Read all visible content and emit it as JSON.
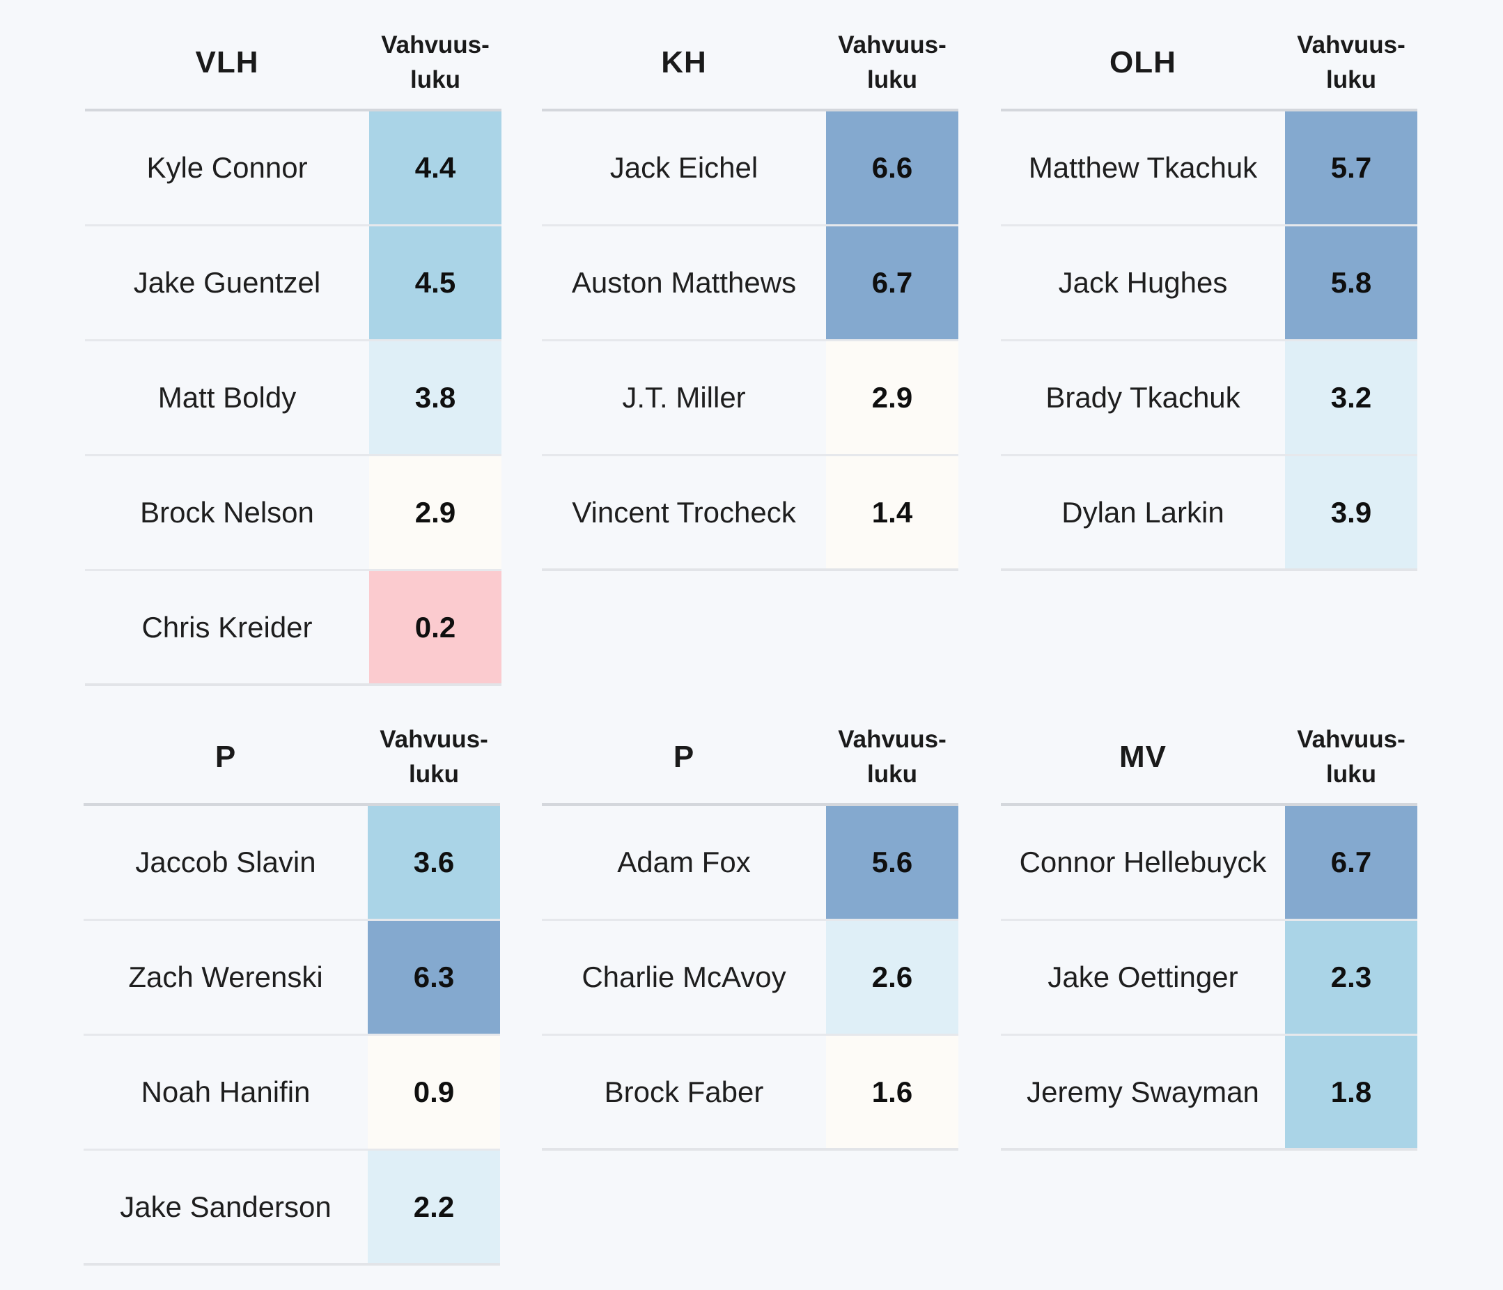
{
  "colors": {
    "tier_high": "#84a9cf",
    "tier_mid": "#aad4e7",
    "tier_low": "#dfeff7",
    "tier_neutral": "#fdfbf7",
    "tier_negative": "#fbcbcf"
  },
  "tables": [
    {
      "position": "VLH",
      "score_header": "Vahvuus-\nluku",
      "rows": [
        {
          "name": "Kyle Connor",
          "score": "4.4",
          "tier": "mid"
        },
        {
          "name": "Jake Guentzel",
          "score": "4.5",
          "tier": "mid"
        },
        {
          "name": "Matt Boldy",
          "score": "3.8",
          "tier": "low"
        },
        {
          "name": "Brock Nelson",
          "score": "2.9",
          "tier": "neutral"
        },
        {
          "name": "Chris Kreider",
          "score": "0.2",
          "tier": "negative"
        }
      ]
    },
    {
      "position": "KH",
      "score_header": "Vahvuus-\nluku",
      "rows": [
        {
          "name": "Jack Eichel",
          "score": "6.6",
          "tier": "high"
        },
        {
          "name": "Auston Matthews",
          "score": "6.7",
          "tier": "high"
        },
        {
          "name": "J.T. Miller",
          "score": "2.9",
          "tier": "neutral"
        },
        {
          "name": "Vincent Trocheck",
          "score": "1.4",
          "tier": "neutral"
        }
      ]
    },
    {
      "position": "OLH",
      "score_header": "Vahvuus-\nluku",
      "rows": [
        {
          "name": "Matthew Tkachuk",
          "score": "5.7",
          "tier": "high"
        },
        {
          "name": "Jack Hughes",
          "score": "5.8",
          "tier": "high"
        },
        {
          "name": "Brady Tkachuk",
          "score": "3.2",
          "tier": "low"
        },
        {
          "name": "Dylan Larkin",
          "score": "3.9",
          "tier": "low"
        }
      ]
    },
    {
      "position": "P",
      "score_header": "Vahvuus-\nluku",
      "rows": [
        {
          "name": "Jaccob Slavin",
          "score": "3.6",
          "tier": "mid"
        },
        {
          "name": "Zach Werenski",
          "score": "6.3",
          "tier": "high"
        },
        {
          "name": "Noah Hanifin",
          "score": "0.9",
          "tier": "neutral"
        },
        {
          "name": "Jake Sanderson",
          "score": "2.2",
          "tier": "low"
        }
      ]
    },
    {
      "position": "P",
      "score_header": "Vahvuus-\nluku",
      "rows": [
        {
          "name": "Adam Fox",
          "score": "5.6",
          "tier": "high"
        },
        {
          "name": "Charlie McAvoy",
          "score": "2.6",
          "tier": "low"
        },
        {
          "name": "Brock Faber",
          "score": "1.6",
          "tier": "neutral"
        }
      ]
    },
    {
      "position": "MV",
      "score_header": "Vahvuus-\nluku",
      "rows": [
        {
          "name": "Connor Hellebuyck",
          "score": "6.7",
          "tier": "high"
        },
        {
          "name": "Jake Oettinger",
          "score": "2.3",
          "tier": "mid"
        },
        {
          "name": "Jeremy Swayman",
          "score": "1.8",
          "tier": "mid"
        }
      ]
    }
  ],
  "chart_data": {
    "type": "table",
    "columns": [
      "Vahvuus-luku"
    ],
    "groups": [
      {
        "position": "VLH",
        "players": [
          "Kyle Connor",
          "Jake Guentzel",
          "Matt Boldy",
          "Brock Nelson",
          "Chris Kreider"
        ],
        "values": [
          4.4,
          4.5,
          3.8,
          2.9,
          0.2
        ]
      },
      {
        "position": "KH",
        "players": [
          "Jack Eichel",
          "Auston Matthews",
          "J.T. Miller",
          "Vincent Trocheck"
        ],
        "values": [
          6.6,
          6.7,
          2.9,
          1.4
        ]
      },
      {
        "position": "OLH",
        "players": [
          "Matthew Tkachuk",
          "Jack Hughes",
          "Brady Tkachuk",
          "Dylan Larkin"
        ],
        "values": [
          5.7,
          5.8,
          3.2,
          3.9
        ]
      },
      {
        "position": "P",
        "players": [
          "Jaccob Slavin",
          "Zach Werenski",
          "Noah Hanifin",
          "Jake Sanderson"
        ],
        "values": [
          3.6,
          6.3,
          0.9,
          2.2
        ]
      },
      {
        "position": "P",
        "players": [
          "Adam Fox",
          "Charlie McAvoy",
          "Brock Faber"
        ],
        "values": [
          5.6,
          2.6,
          1.6
        ]
      },
      {
        "position": "MV",
        "players": [
          "Connor Hellebuyck",
          "Jake Oettinger",
          "Jeremy Swayman"
        ],
        "values": [
          6.7,
          2.3,
          1.8
        ]
      }
    ]
  }
}
